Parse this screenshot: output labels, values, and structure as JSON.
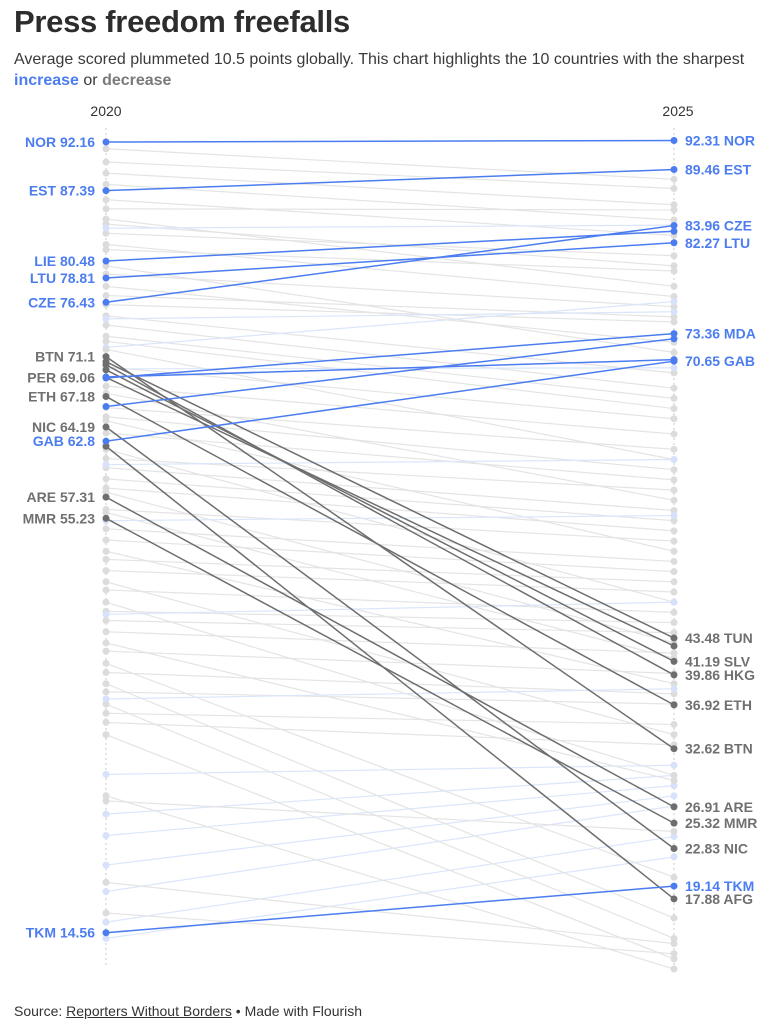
{
  "title": "Press freedom freefalls",
  "subtitle": {
    "text_before": "Average scored plummeted 10.5 points globally. This chart highlights the 10 countries with the sharpest ",
    "increase": "increase",
    "middle": " or ",
    "decrease": "decrease"
  },
  "footer": {
    "source_prefix": "Source: ",
    "source_link": "Reporters Without Borders",
    "separator": " • ",
    "made_with": "Made with Flourish"
  },
  "colors": {
    "increase": "#4c7df0",
    "decrease": "#6e6e6e",
    "background_decrease": "#e4e4e4",
    "background_increase": "#dbe6fb"
  },
  "chart_data": {
    "type": "slope",
    "x_categories": [
      "2020",
      "2025"
    ],
    "ylim": [
      11,
      93
    ],
    "grid": false,
    "highlighted": [
      {
        "code": "NOR",
        "v2020": 92.16,
        "v2025": 92.31,
        "trend": "increase",
        "left_label": "NOR 92.16",
        "right_label": "92.31 NOR"
      },
      {
        "code": "EST",
        "v2020": 87.39,
        "v2025": 89.46,
        "trend": "increase",
        "left_label": "EST 87.39",
        "right_label": "89.46 EST"
      },
      {
        "code": "LIE",
        "v2020": 80.48,
        "v2025": 83.4,
        "trend": "increase",
        "left_label": "LIE 80.48",
        "right_label": ""
      },
      {
        "code": "LTU",
        "v2020": 78.81,
        "v2025": 82.27,
        "trend": "increase",
        "left_label": "LTU 78.81",
        "right_label": "82.27 LTU"
      },
      {
        "code": "CZE",
        "v2020": 76.43,
        "v2025": 83.96,
        "trend": "increase",
        "left_label": "CZE 76.43",
        "right_label": "83.96 CZE"
      },
      {
        "code": "MDA",
        "v2020": 69.0,
        "v2025": 73.36,
        "trend": "increase",
        "left_label": "",
        "right_label": "73.36 MDA"
      },
      {
        "code": "",
        "v2020": 69.1,
        "v2025": 70.8,
        "trend": "increase",
        "left_label": "",
        "right_label": ""
      },
      {
        "code": "",
        "v2020": 66.2,
        "v2025": 72.85,
        "trend": "increase",
        "left_label": "",
        "right_label": ""
      },
      {
        "code": "GAB",
        "v2020": 62.8,
        "v2025": 70.65,
        "trend": "increase",
        "left_label": "GAB 62.8",
        "right_label": "70.65 GAB"
      },
      {
        "code": "TKM",
        "v2020": 14.56,
        "v2025": 19.14,
        "trend": "increase",
        "left_label": "TKM 14.56",
        "right_label": "19.14 TKM"
      },
      {
        "code": "BTN",
        "v2020": 71.1,
        "v2025": 32.62,
        "trend": "decrease",
        "left_label": "BTN 71.1",
        "right_label": "32.62 BTN"
      },
      {
        "code": "PER",
        "v2020": 69.06,
        "v2025": 42.7,
        "trend": "decrease",
        "left_label": "PER 69.06",
        "right_label": ""
      },
      {
        "code": "ETH",
        "v2020": 67.18,
        "v2025": 36.92,
        "trend": "decrease",
        "left_label": "ETH 67.18",
        "right_label": "36.92 ETH"
      },
      {
        "code": "NIC",
        "v2020": 64.19,
        "v2025": 22.83,
        "trend": "decrease",
        "left_label": "NIC 64.19",
        "right_label": "22.83 NIC"
      },
      {
        "code": "ARE",
        "v2020": 57.31,
        "v2025": 26.91,
        "trend": "decrease",
        "left_label": "ARE 57.31",
        "right_label": "26.91 ARE"
      },
      {
        "code": "MMR",
        "v2020": 55.23,
        "v2025": 25.32,
        "trend": "decrease",
        "left_label": "MMR 55.23",
        "right_label": "25.32 MMR"
      },
      {
        "code": "TUN",
        "v2020": 70.6,
        "v2025": 43.48,
        "trend": "decrease",
        "left_label": "",
        "right_label": "43.48 TUN"
      },
      {
        "code": "SLV",
        "v2020": 69.8,
        "v2025": 41.19,
        "trend": "decrease",
        "left_label": "",
        "right_label": "41.19 SLV"
      },
      {
        "code": "HKG",
        "v2020": 70.3,
        "v2025": 39.86,
        "trend": "decrease",
        "left_label": "",
        "right_label": "39.86 HKG"
      },
      {
        "code": "AFG",
        "v2020": 62.3,
        "v2025": 17.88,
        "trend": "decrease",
        "left_label": "",
        "right_label": "17.88 AFG"
      }
    ],
    "background": [
      [
        91.5,
        88.5
      ],
      [
        90.2,
        87.6
      ],
      [
        89.1,
        86.0
      ],
      [
        85.6,
        85.5
      ],
      [
        84.6,
        78.0
      ],
      [
        84.1,
        80.0
      ],
      [
        83.2,
        81.0
      ],
      [
        82.1,
        77.0
      ],
      [
        81.6,
        79.5
      ],
      [
        79.2,
        76.0
      ],
      [
        77.1,
        75.0
      ],
      [
        76.2,
        74.5
      ],
      [
        75.1,
        69.5
      ],
      [
        74.2,
        68.0
      ],
      [
        73.1,
        67.0
      ],
      [
        72.6,
        66.0
      ],
      [
        72.0,
        76.5
      ],
      [
        70.1,
        65.0
      ],
      [
        68.2,
        63.5
      ],
      [
        66.1,
        62.0
      ],
      [
        65.2,
        60.0
      ],
      [
        63.6,
        59.0
      ],
      [
        61.1,
        58.0
      ],
      [
        60.2,
        56.0
      ],
      [
        59.1,
        55.0
      ],
      [
        58.2,
        54.0
      ],
      [
        56.1,
        53.0
      ],
      [
        54.2,
        51.0
      ],
      [
        53.1,
        50.0
      ],
      [
        51.2,
        49.0
      ],
      [
        50.1,
        48.0
      ],
      [
        48.2,
        46.0
      ],
      [
        46.1,
        45.0
      ],
      [
        45.2,
        44.0
      ],
      [
        44.1,
        42.0
      ],
      [
        42.2,
        40.0
      ],
      [
        40.1,
        38.0
      ],
      [
        38.2,
        37.0
      ],
      [
        36.1,
        35.0
      ],
      [
        35.2,
        33.0
      ],
      [
        30.1,
        31.0
      ],
      [
        26.2,
        30.0
      ],
      [
        24.1,
        29.0
      ],
      [
        21.2,
        28.0
      ],
      [
        18.6,
        27.0
      ],
      [
        15.6,
        24.0
      ],
      [
        14.0,
        22.0
      ],
      [
        88.0,
        84.5
      ],
      [
        86.5,
        83.0
      ],
      [
        80.0,
        71.5
      ],
      [
        78.0,
        72.5
      ],
      [
        71.8,
        61.0
      ],
      [
        67.5,
        57.0
      ],
      [
        64.8,
        52.0
      ],
      [
        62.0,
        47.0
      ],
      [
        57.8,
        43.0
      ],
      [
        55.8,
        41.5
      ],
      [
        52.0,
        39.0
      ],
      [
        49.0,
        34.0
      ],
      [
        47.0,
        30.0
      ],
      [
        43.0,
        29.5
      ],
      [
        41.0,
        20.0
      ],
      [
        39.0,
        16.0
      ],
      [
        37.0,
        14.0
      ],
      [
        34.0,
        12.0
      ],
      [
        28.0,
        11.0
      ],
      [
        60.5,
        61.0
      ],
      [
        55.0,
        55.5
      ],
      [
        45.8,
        47.0
      ],
      [
        37.5,
        38.5
      ],
      [
        74.8,
        75.5
      ],
      [
        69.9,
        70.0
      ],
      [
        83.7,
        84.0
      ],
      [
        27.5,
        24.5
      ],
      [
        19.5,
        13.5
      ],
      [
        16.5,
        12.5
      ]
    ]
  }
}
